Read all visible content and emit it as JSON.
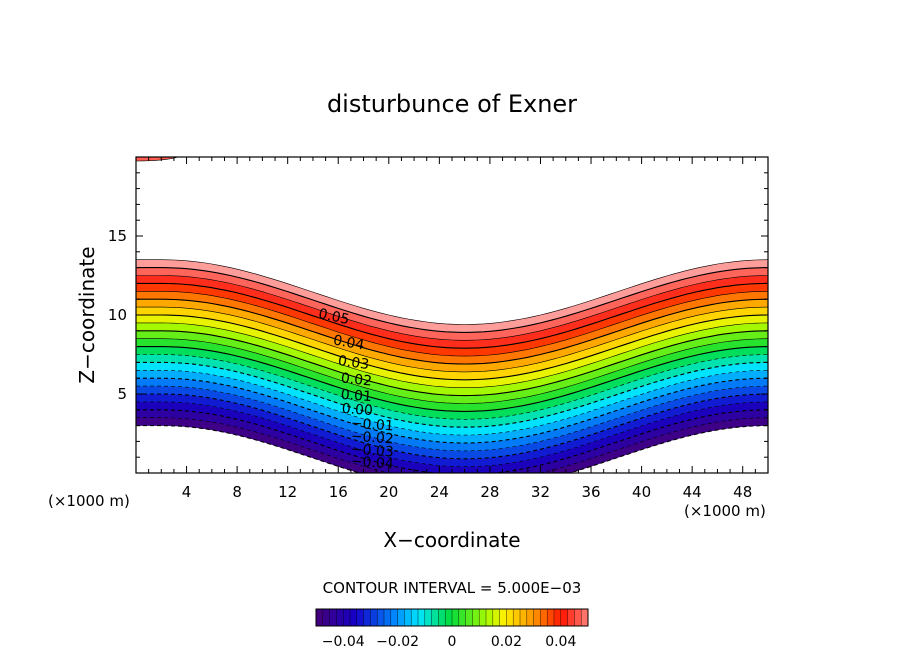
{
  "chart_data": {
    "type": "contour",
    "title": "disturbunce of Exner",
    "xlabel": "X−coordinate",
    "ylabel": "Z−coordinate",
    "x_unit_left": "(×1000 m)",
    "x_unit_right": "(×1000 m)",
    "xlim": [
      0,
      50
    ],
    "ylim": [
      0,
      20
    ],
    "x_ticks": [
      4,
      8,
      12,
      16,
      20,
      24,
      28,
      32,
      36,
      40,
      44,
      48
    ],
    "y_ticks": [
      5,
      10,
      15
    ],
    "contour_interval_text": "CONTOUR INTERVAL = 5.000E−03",
    "contour_labels": [
      "0.05",
      "0.04",
      "0.03",
      "0.02",
      "0.01",
      "0.00",
      "−0.01",
      "−0.02",
      "−0.03",
      "−0.04"
    ],
    "field": {
      "min": -0.05,
      "max": 0.055,
      "interval": 0.005,
      "zero_level_height_km": {
        "edge": 8.0,
        "trough": 3.9
      },
      "zero_level_trough_center_x": 26,
      "gradient_per_km": 0.01
    },
    "colorbar": {
      "min": -0.05,
      "max": 0.05,
      "tick_values": [
        -0.04,
        -0.02,
        0,
        0.02,
        0.04
      ],
      "tick_labels": [
        "−0.04",
        "−0.02",
        "0",
        "0.02",
        "0.04"
      ]
    }
  }
}
